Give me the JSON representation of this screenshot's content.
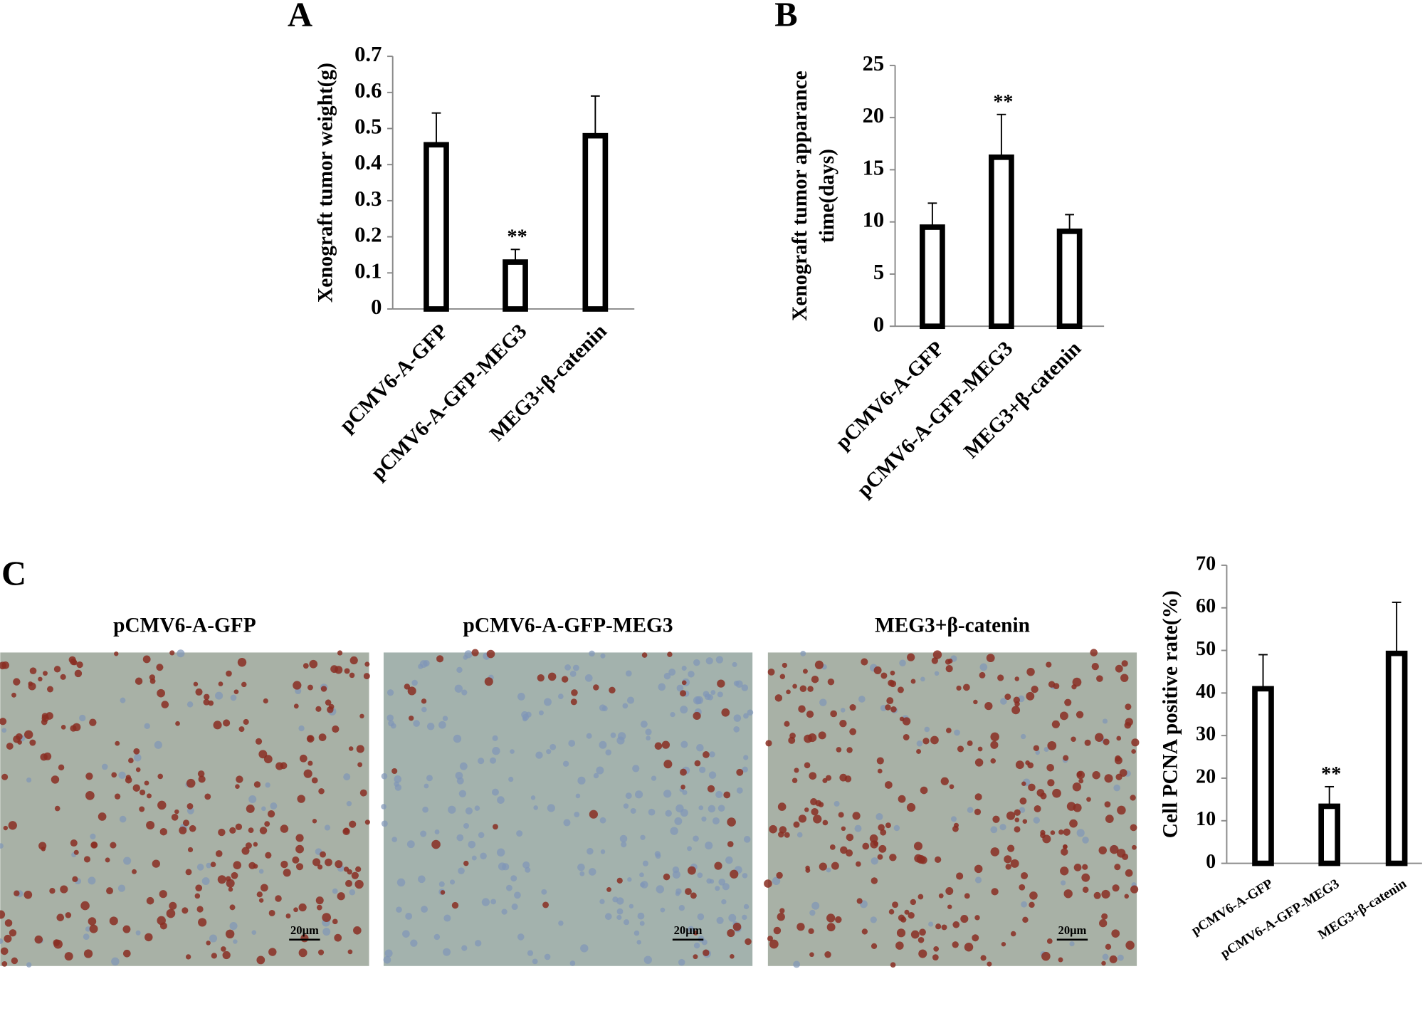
{
  "chart_data": [
    {
      "type": "bar",
      "panel": "A",
      "ylabel": [
        "Xenograft tumor weight(g)"
      ],
      "categories": [
        "pCMV6-A-GFP",
        "pCMV6-A-GFP-MEG3",
        "MEG3+β-catenin"
      ],
      "values": [
        0.455,
        0.13,
        0.48
      ],
      "errors": [
        0.088,
        0.035,
        0.11
      ],
      "annotations": [
        null,
        "**",
        null
      ],
      "color": "#000000",
      "ylim": [
        0,
        0.7
      ],
      "yticks": [
        0,
        0.1,
        0.2,
        0.3,
        0.4,
        0.5,
        0.6,
        0.7
      ]
    },
    {
      "type": "bar",
      "panel": "B",
      "ylabel": [
        "Xenograft tumor apparance",
        "time(days)"
      ],
      "categories": [
        "pCMV6-A-GFP",
        "pCMV6-A-GFP-MEG3",
        "MEG3+β-catenin"
      ],
      "values": [
        9.5,
        16.2,
        9.1
      ],
      "errors": [
        2.3,
        4.1,
        1.6
      ],
      "annotations": [
        null,
        "**",
        null
      ],
      "color": "#000000",
      "ylim": [
        0,
        25
      ],
      "yticks": [
        0,
        5,
        10,
        15,
        20,
        25
      ]
    },
    {
      "type": "bar",
      "panel": "C",
      "ylabel": [
        "Cell PCNA positive rate(%)"
      ],
      "categories": [
        "pCMV6-A-GFP",
        "pCMV6-A-GFP-MEG3",
        "MEG3+β-catenin"
      ],
      "values": [
        41,
        13.4,
        49.3
      ],
      "errors": [
        8,
        4.6,
        12
      ],
      "annotations": [
        null,
        "**",
        null
      ],
      "color": "#000000",
      "ylim": [
        0,
        70
      ],
      "yticks": [
        0,
        10,
        20,
        30,
        40,
        50,
        60,
        70
      ]
    }
  ],
  "images": [
    {
      "title": "pCMV6-A-GFP",
      "scale_bar": "20μm"
    },
    {
      "title": "pCMV6-A-GFP-MEG3",
      "scale_bar": "20μm"
    },
    {
      "title": "MEG3+β-catenin",
      "scale_bar": "20μm"
    }
  ]
}
